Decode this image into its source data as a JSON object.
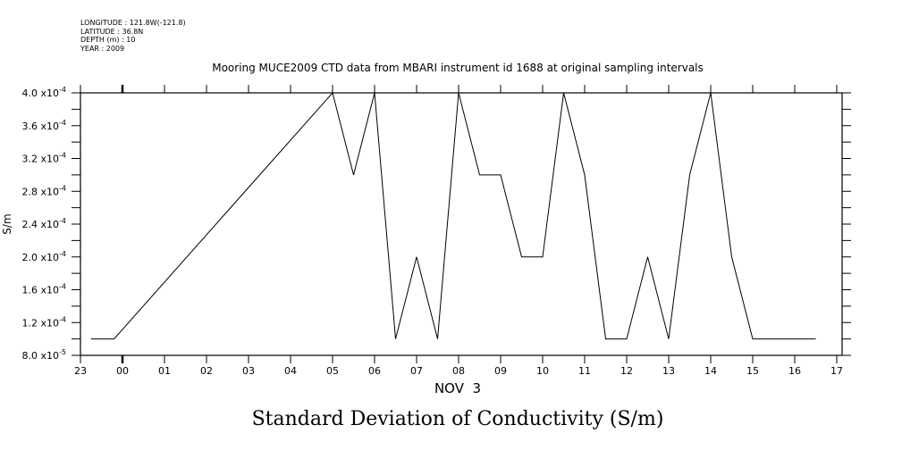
{
  "header": {
    "longitude": "LONGITUDE : 121.8W(-121.8)",
    "latitude": "LATITUDE : 36.8N",
    "depth": "DEPTH (m) : 10",
    "year": "YEAR : 2009"
  },
  "chart_data": {
    "type": "line",
    "title": "Mooring MUCE2009 CTD data from MBARI instrument id 1688 at original sampling intervals",
    "xlabel": "NOV  3",
    "ylabel": "S/m",
    "caption": "Standard Deviation of Conductivity (S/m)",
    "x_units": "hours relative to Nov 3 00:00",
    "xlim": [
      -1,
      17
    ],
    "ylim": [
      8e-05,
      0.0004
    ],
    "x_ticks": [
      {
        "value": -1,
        "label": "23"
      },
      {
        "value": 0,
        "label": "00"
      },
      {
        "value": 1,
        "label": "01"
      },
      {
        "value": 2,
        "label": "02"
      },
      {
        "value": 3,
        "label": "03"
      },
      {
        "value": 4,
        "label": "04"
      },
      {
        "value": 5,
        "label": "05"
      },
      {
        "value": 6,
        "label": "06"
      },
      {
        "value": 7,
        "label": "07"
      },
      {
        "value": 8,
        "label": "08"
      },
      {
        "value": 9,
        "label": "09"
      },
      {
        "value": 10,
        "label": "10"
      },
      {
        "value": 11,
        "label": "11"
      },
      {
        "value": 12,
        "label": "12"
      },
      {
        "value": 13,
        "label": "13"
      },
      {
        "value": 14,
        "label": "14"
      },
      {
        "value": 15,
        "label": "15"
      },
      {
        "value": 16,
        "label": "16"
      },
      {
        "value": 17,
        "label": "17"
      }
    ],
    "y_ticks": [
      {
        "value": 8e-05,
        "mant": "8.0",
        "exp": "-5"
      },
      {
        "value": 0.00012,
        "mant": "1.2",
        "exp": "-4"
      },
      {
        "value": 0.00016,
        "mant": "1.6",
        "exp": "-4"
      },
      {
        "value": 0.0002,
        "mant": "2.0",
        "exp": "-4"
      },
      {
        "value": 0.00024,
        "mant": "2.4",
        "exp": "-4"
      },
      {
        "value": 0.00028,
        "mant": "2.8",
        "exp": "-4"
      },
      {
        "value": 0.00032,
        "mant": "3.2",
        "exp": "-4"
      },
      {
        "value": 0.00036,
        "mant": "3.6",
        "exp": "-4"
      },
      {
        "value": 0.0004,
        "mant": "4.0",
        "exp": "-4"
      }
    ],
    "y_tick_times": "x10",
    "series": [
      {
        "name": "Standard Deviation of Conductivity",
        "x": [
          -0.75,
          -0.2,
          5,
          5.5,
          6,
          6.5,
          7,
          7.5,
          8,
          8.5,
          9,
          9.5,
          10,
          10.5,
          11,
          11.5,
          12,
          12.5,
          13,
          13.5,
          14,
          14.5,
          15,
          16.5
        ],
        "y": [
          0.0001,
          0.0001,
          0.0004,
          0.0003,
          0.0004,
          0.0001,
          0.0002,
          0.0001,
          0.0004,
          0.0003,
          0.0003,
          0.0002,
          0.0002,
          0.0004,
          0.0003,
          0.0001,
          0.0001,
          0.0002,
          0.0001,
          0.0003,
          0.0004,
          0.0002,
          0.0001,
          0.0001
        ]
      }
    ],
    "grid": false,
    "legend": "none"
  }
}
